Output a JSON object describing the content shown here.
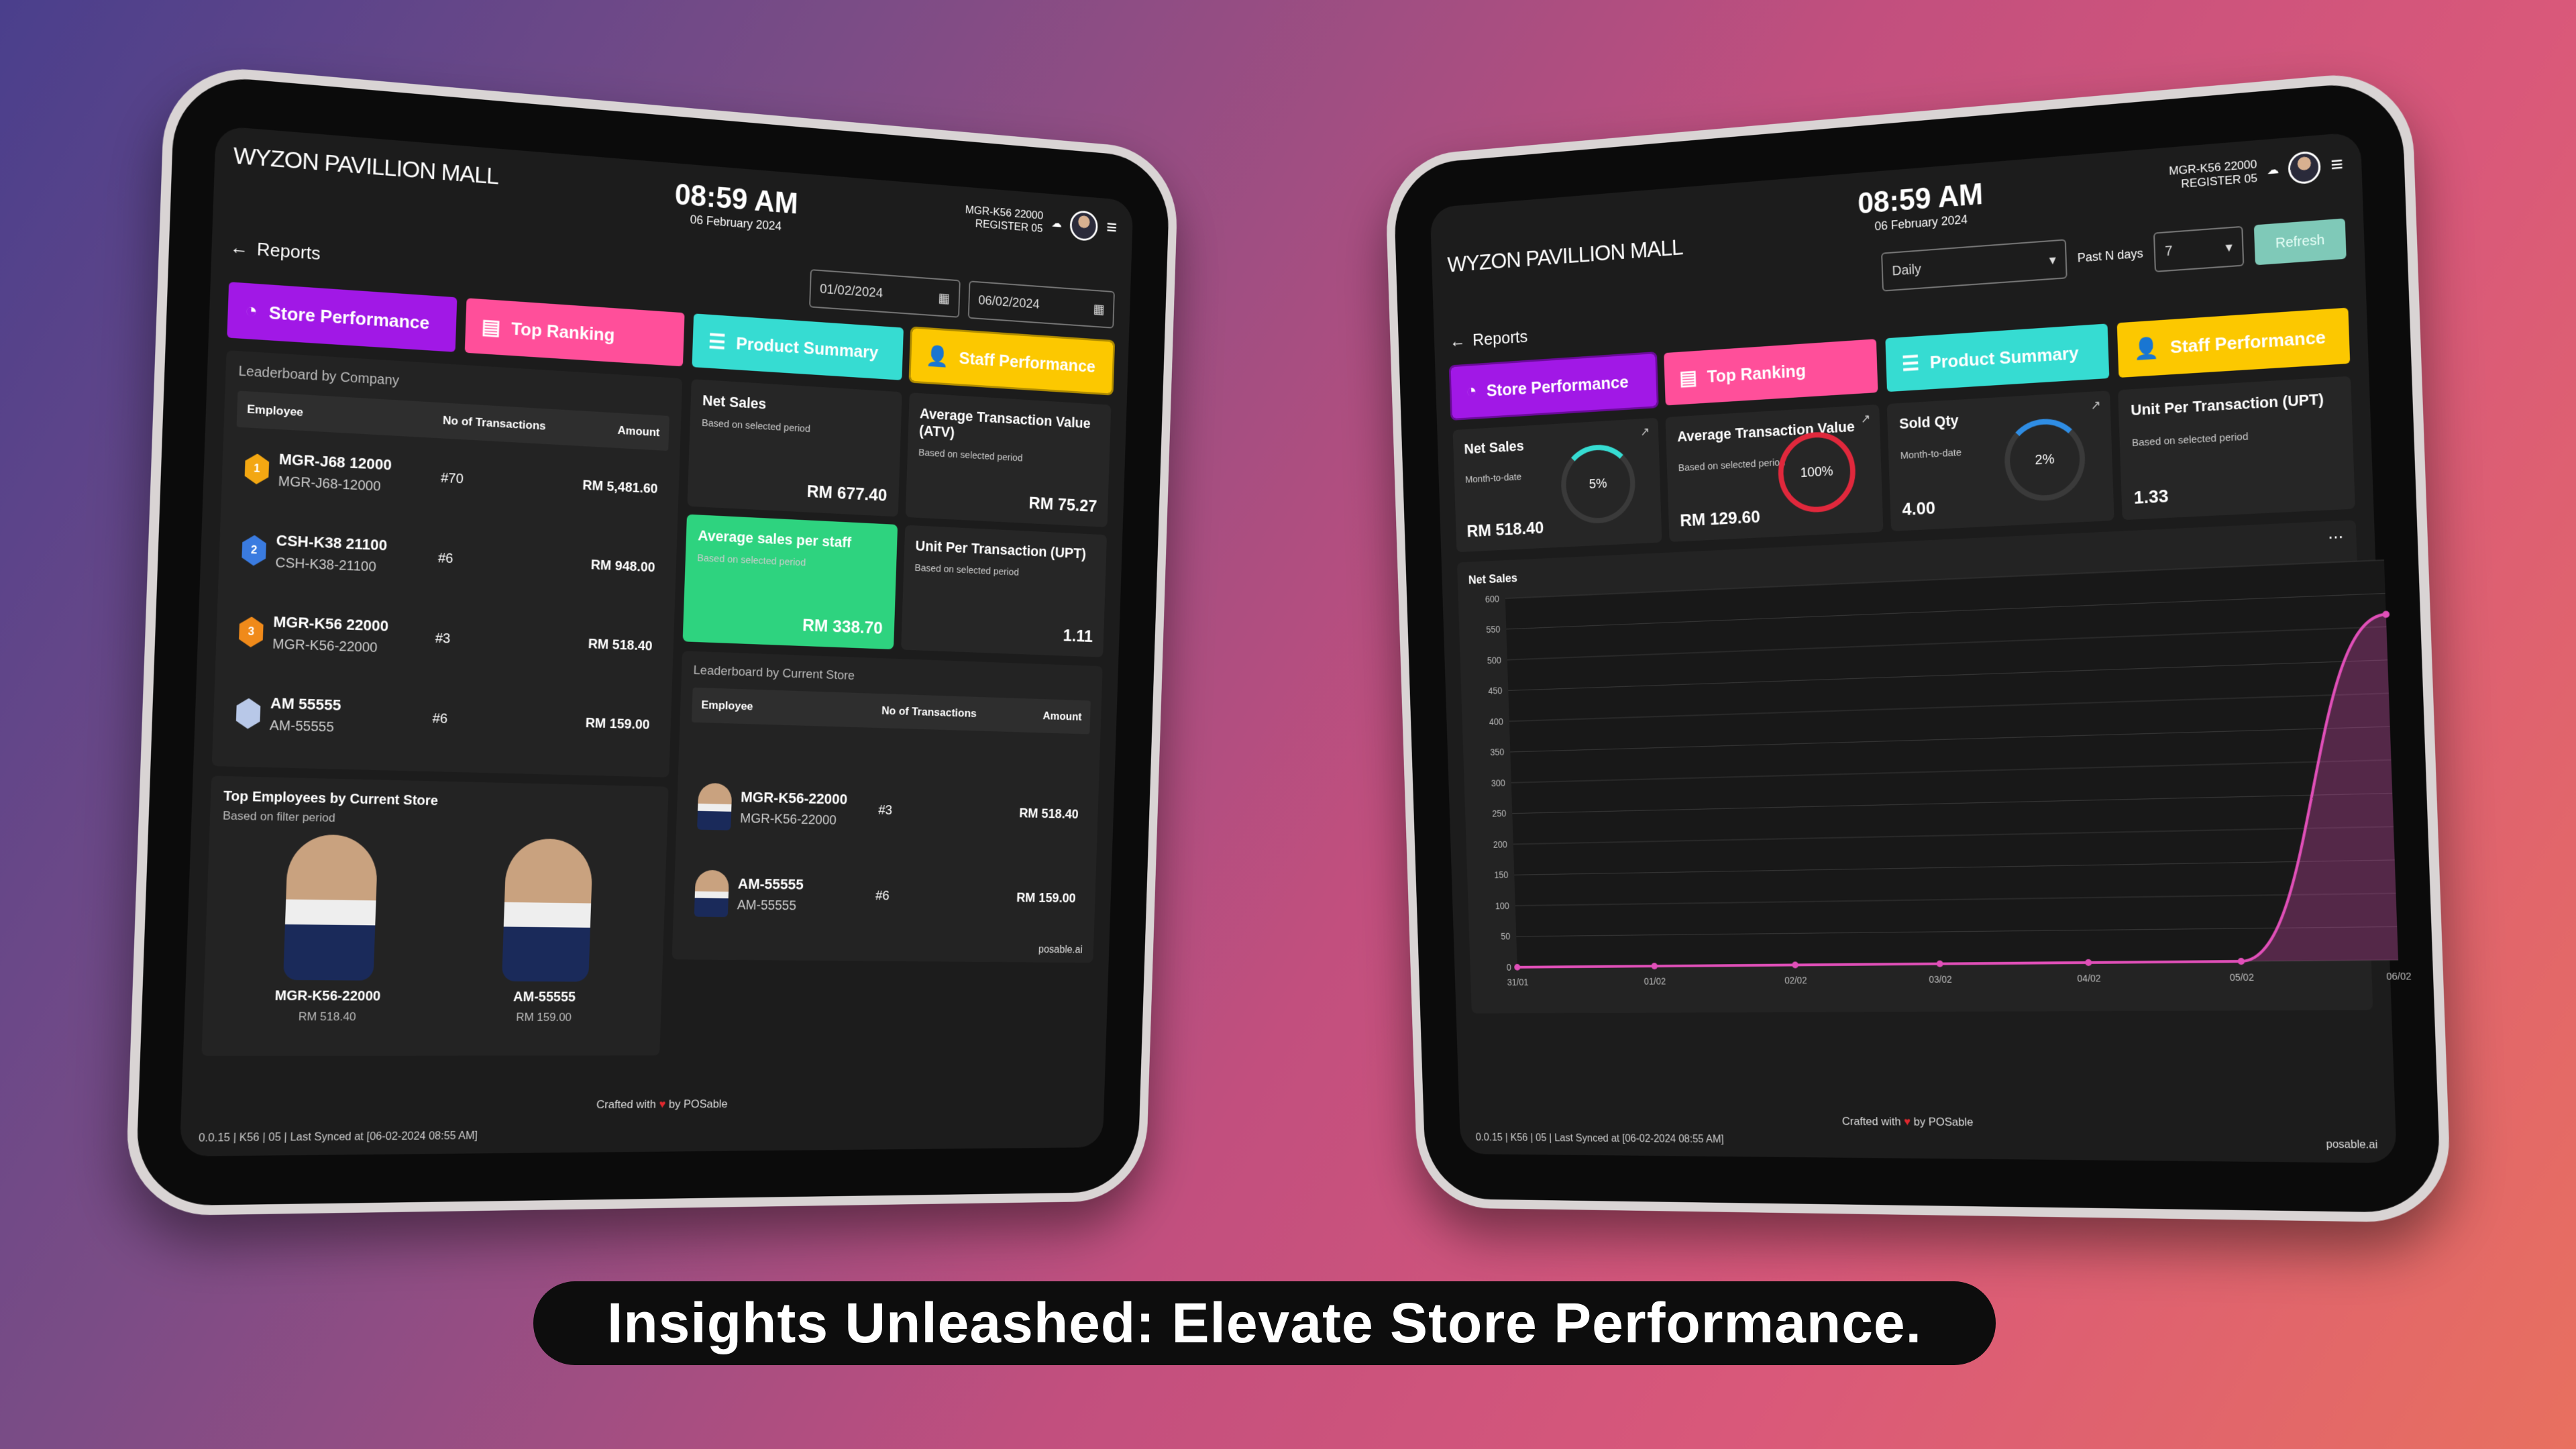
{
  "caption": "Insights Unleashed: Elevate Store Performance.",
  "colors": {
    "store_performance": "#a118e6",
    "top_ranking": "#ff4f9a",
    "product_summary": "#36dcd2",
    "staff_performance": "#fcc800",
    "green": "#2ed37f",
    "line": "#e04fb8",
    "refresh": "#7fc9b8"
  },
  "common": {
    "mall": "WYZON PAVILLION MALL",
    "time": "08:59 AM",
    "date": "06 February 2024",
    "user": "MGR-K56 22000",
    "register": "REGISTER 05",
    "back": "Reports",
    "footer": "0.0.15 | K56 | 05 | Last Synced at [06-02-2024 08:55 AM]",
    "crafted_pre": "Crafted with",
    "crafted_post": "by POSable",
    "logo": "posable.ai",
    "tabs": [
      {
        "label": "Store Performance",
        "icon": "pie-chart-icon"
      },
      {
        "label": "Top Ranking",
        "icon": "briefcase-icon"
      },
      {
        "label": "Product Summary",
        "icon": "receipt-icon"
      },
      {
        "label": "Staff Performance",
        "icon": "person-icon"
      }
    ]
  },
  "left": {
    "date_from": "01/02/2024",
    "date_to": "06/02/2024",
    "leaderboard_company": {
      "title": "Leaderboard by Company",
      "headers": [
        "Employee",
        "No of Transactions",
        "Amount"
      ],
      "rows": [
        {
          "rank": "1",
          "name": "MGR-J68 12000",
          "id": "MGR-J68-12000",
          "tx": "#70",
          "amount": "RM 5,481.60"
        },
        {
          "rank": "2",
          "name": "CSH-K38 21100",
          "id": "CSH-K38-21100",
          "tx": "#6",
          "amount": "RM 948.00"
        },
        {
          "rank": "3",
          "name": "MGR-K56 22000",
          "id": "MGR-K56-22000",
          "tx": "#3",
          "amount": "RM 518.40"
        },
        {
          "rank": "",
          "name": "AM 55555",
          "id": "AM-55555",
          "tx": "#6",
          "amount": "RM 159.00"
        }
      ]
    },
    "top_employees": {
      "title": "Top Employees by Current Store",
      "subtitle": "Based on filter period",
      "items": [
        {
          "name": "MGR-K56-22000",
          "amount": "RM 518.40"
        },
        {
          "name": "AM-55555",
          "amount": "RM 159.00"
        }
      ]
    },
    "kpis": [
      {
        "title": "Net Sales",
        "sub": "Based on selected period",
        "value": "RM 677.40"
      },
      {
        "title": "Average Transaction Value (ATV)",
        "sub": "Based on selected period",
        "value": "RM 75.27"
      },
      {
        "title": "Average sales per staff",
        "sub": "Based on selected period",
        "value": "RM 338.70"
      },
      {
        "title": "Unit Per Transaction (UPT)",
        "sub": "Based on selected period",
        "value": "1.11"
      }
    ],
    "leaderboard_store": {
      "title": "Leaderboard by Current Store",
      "headers": [
        "Employee",
        "No of Transactions",
        "Amount"
      ],
      "rows": [
        {
          "name": "MGR-K56-22000",
          "id": "MGR-K56-22000",
          "tx": "#3",
          "amount": "RM 518.40"
        },
        {
          "name": "AM-55555",
          "id": "AM-55555",
          "tx": "#6",
          "amount": "RM 159.00"
        }
      ]
    }
  },
  "right": {
    "period_select": "Daily",
    "past_n_label": "Past N days",
    "past_n_value": "7",
    "refresh": "Refresh",
    "kpis": [
      {
        "title": "Net Sales",
        "sub": "Month-to-date",
        "value": "RM 518.40",
        "percent": "5%",
        "pct": 5,
        "ring": "#36dcd2"
      },
      {
        "title": "Average Transaction Value",
        "sub": "Based on selected period",
        "value": "RM 129.60",
        "percent": "100%",
        "pct": 100,
        "ring": "#e0283c"
      },
      {
        "title": "Sold Qty",
        "sub": "Month-to-date",
        "value": "4.00",
        "percent": "2%",
        "pct": 2,
        "ring": "#2f8de4"
      },
      {
        "title": "Unit Per Transaction (UPT)",
        "sub": "Based on selected period",
        "value": "1.33"
      }
    ]
  },
  "chart_data": {
    "type": "area",
    "title": "Net Sales",
    "x": [
      "31/01",
      "01/02",
      "02/02",
      "03/02",
      "04/02",
      "05/02",
      "06/02"
    ],
    "values": [
      0,
      0,
      0,
      0,
      0,
      0,
      518.4
    ],
    "ylim": [
      0,
      600
    ],
    "yticks": [
      0,
      50,
      100,
      150,
      200,
      250,
      300,
      350,
      400,
      450,
      500,
      550,
      600
    ],
    "grid": true,
    "color": "#e04fb8"
  }
}
